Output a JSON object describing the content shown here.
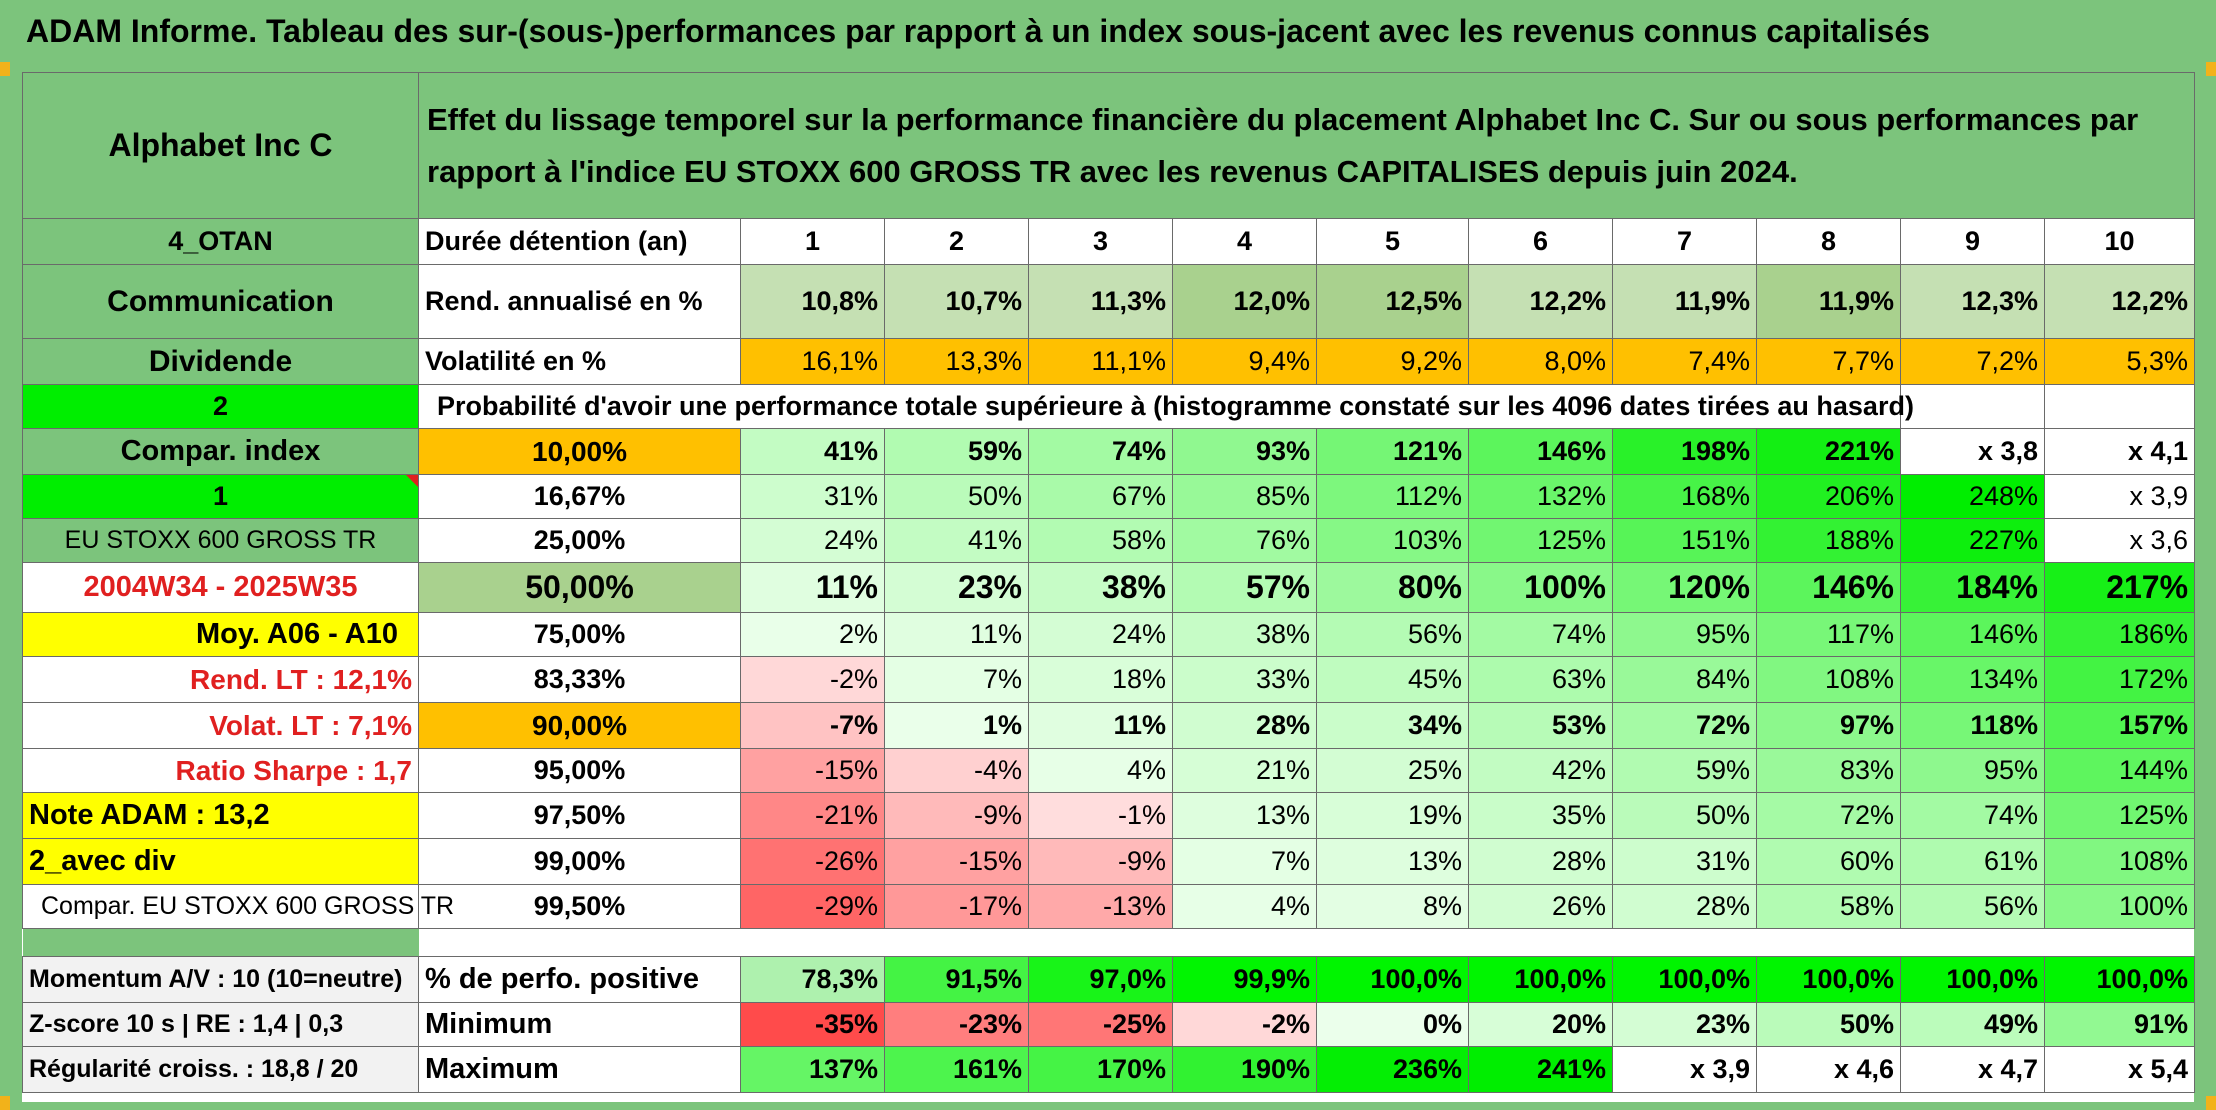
{
  "title": "ADAM Informe. Tableau des sur-(sous-)performances par rapport à un index sous-jacent avec les revenus connus capitalisés",
  "header": {
    "asset": "Alphabet Inc C",
    "description": "Effet du lissage temporel sur la performance financière du placement Alphabet Inc C. Sur ou sous performances par rapport à l'indice EU STOXX 600 GROSS TR avec les revenus CAPITALISES depuis juin 2024."
  },
  "side": {
    "group": "4_OTAN",
    "sector": "Communication",
    "type": "Dividende",
    "n1": "2",
    "compar_index": "Compar. index",
    "n2": "1",
    "index_name": "EU STOXX 600 GROSS TR",
    "period": "2004W34 - 2025W35",
    "moy": "Moy. A06 - A10",
    "rend_lt": "Rend. LT :   12,1%",
    "volat_lt": "Volat. LT :   7,1%",
    "sharpe": "Ratio Sharpe :    1,7",
    "note": "Note ADAM : 13,2",
    "avec_div": "2_avec div",
    "compar_full": "Compar. EU STOXX 600 GROSS TR",
    "momentum": "Momentum A/V : 10 (10=neutre)",
    "zscore": "Z-score 10 s | RE : 1,4 | 0,3",
    "regularite": "Régularité croiss. : 18,8 / 20"
  },
  "labels": {
    "duree": "Durée détention (an)",
    "rend": "Rend. annualisé en %",
    "vol": "Volatilité en %",
    "proba": "Probabilité d'avoir une performance totale supérieure à (histogramme constaté sur les 4096 dates tirées au hasard)",
    "pos": "% de perfo. positive",
    "min": "Minimum",
    "max": "Maximum"
  },
  "years": [
    "1",
    "2",
    "3",
    "4",
    "5",
    "6",
    "7",
    "8",
    "9",
    "10"
  ],
  "rend": [
    "10,8%",
    "10,7%",
    "11,3%",
    "12,0%",
    "12,5%",
    "12,2%",
    "11,9%",
    "11,9%",
    "12,3%",
    "12,2%"
  ],
  "vol": [
    "16,1%",
    "13,3%",
    "11,1%",
    "9,4%",
    "9,2%",
    "8,0%",
    "7,4%",
    "7,7%",
    "7,2%",
    "5,3%"
  ],
  "perc_rows": [
    {
      "p": "10,00%",
      "v": [
        "41%",
        "59%",
        "74%",
        "93%",
        "121%",
        "146%",
        "198%",
        "221%",
        "x 3,8",
        "x 4,1"
      ]
    },
    {
      "p": "16,67%",
      "v": [
        "31%",
        "50%",
        "67%",
        "85%",
        "112%",
        "132%",
        "168%",
        "206%",
        "248%",
        "x 3,9"
      ]
    },
    {
      "p": "25,00%",
      "v": [
        "24%",
        "41%",
        "58%",
        "76%",
        "103%",
        "125%",
        "151%",
        "188%",
        "227%",
        "x 3,6"
      ]
    },
    {
      "p": "50,00%",
      "v": [
        "11%",
        "23%",
        "38%",
        "57%",
        "80%",
        "100%",
        "120%",
        "146%",
        "184%",
        "217%"
      ]
    },
    {
      "p": "75,00%",
      "v": [
        "2%",
        "11%",
        "24%",
        "38%",
        "56%",
        "74%",
        "95%",
        "117%",
        "146%",
        "186%"
      ]
    },
    {
      "p": "83,33%",
      "v": [
        "-2%",
        "7%",
        "18%",
        "33%",
        "45%",
        "63%",
        "84%",
        "108%",
        "134%",
        "172%"
      ]
    },
    {
      "p": "90,00%",
      "v": [
        "-7%",
        "1%",
        "11%",
        "28%",
        "34%",
        "53%",
        "72%",
        "97%",
        "118%",
        "157%"
      ]
    },
    {
      "p": "95,00%",
      "v": [
        "-15%",
        "-4%",
        "4%",
        "21%",
        "25%",
        "42%",
        "59%",
        "83%",
        "95%",
        "144%"
      ]
    },
    {
      "p": "97,50%",
      "v": [
        "-21%",
        "-9%",
        "-1%",
        "13%",
        "19%",
        "35%",
        "50%",
        "72%",
        "74%",
        "125%"
      ]
    },
    {
      "p": "99,00%",
      "v": [
        "-26%",
        "-15%",
        "-9%",
        "7%",
        "13%",
        "28%",
        "31%",
        "60%",
        "61%",
        "108%"
      ]
    },
    {
      "p": "99,50%",
      "v": [
        "-29%",
        "-17%",
        "-13%",
        "4%",
        "8%",
        "26%",
        "28%",
        "58%",
        "56%",
        "100%"
      ]
    }
  ],
  "pos": [
    "78,3%",
    "91,5%",
    "97,0%",
    "99,9%",
    "100,0%",
    "100,0%",
    "100,0%",
    "100,0%",
    "100,0%",
    "100,0%"
  ],
  "min": [
    "-35%",
    "-23%",
    "-25%",
    "-2%",
    "0%",
    "20%",
    "23%",
    "50%",
    "49%",
    "91%"
  ],
  "max": [
    "137%",
    "161%",
    "170%",
    "190%",
    "236%",
    "241%",
    "x 3,9",
    "x 4,6",
    "x 4,7",
    "x 5,4"
  ],
  "colors": {
    "header_green": "#7cc47c",
    "light_green": "#c5e0b3",
    "orange": "#ffc000",
    "bright_green": "#00ee00",
    "yellow": "#ffff00",
    "red_text": "#e02020"
  }
}
